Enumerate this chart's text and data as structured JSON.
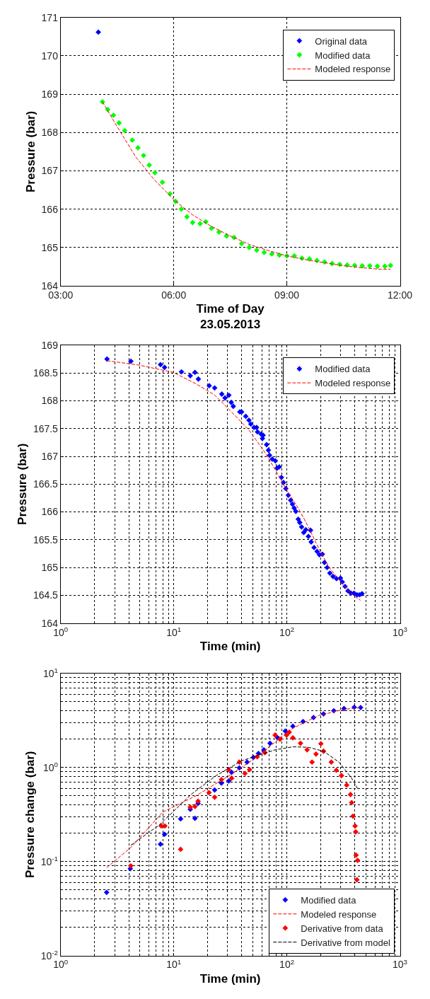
{
  "chart_data": [
    {
      "type": "scatter",
      "xlabel": "Time of Day\n23.05.2013",
      "ylabel": "Pressure (bar)",
      "xlim": [
        3,
        12
      ],
      "xticks": [
        {
          "value": 3,
          "label": "03:00"
        },
        {
          "value": 6,
          "label": "06:00"
        },
        {
          "value": 9,
          "label": "09:00"
        },
        {
          "value": 12,
          "label": "12:00"
        }
      ],
      "ylim": [
        164,
        171
      ],
      "yticks": [
        164,
        165,
        166,
        167,
        168,
        169,
        170,
        171
      ],
      "grid": true,
      "legend": "top right",
      "series": [
        {
          "name": "Original data",
          "marker": "diamond",
          "color": "#0000ff",
          "x": [
            4.0
          ],
          "values": [
            170.62
          ]
        },
        {
          "name": "Modified data",
          "marker": "diamond",
          "color": "#00ff00",
          "x": [
            4.11,
            4.25,
            4.4,
            4.55,
            4.7,
            4.9,
            5.05,
            5.2,
            5.35,
            5.5,
            5.7,
            5.9,
            6.05,
            6.2,
            6.35,
            6.5,
            6.7,
            6.85,
            7.0,
            7.2,
            7.4,
            7.6,
            7.8,
            8.0,
            8.2,
            8.4,
            8.6,
            8.8,
            9.0,
            9.2,
            9.4,
            9.6,
            9.8,
            10.0,
            10.2,
            10.4,
            10.6,
            10.8,
            11.0,
            11.2,
            11.4,
            11.6,
            11.75
          ],
          "values": [
            168.8,
            168.6,
            168.45,
            168.25,
            168.05,
            167.8,
            167.6,
            167.4,
            167.15,
            166.95,
            166.7,
            166.4,
            166.2,
            166.0,
            165.8,
            165.65,
            165.62,
            165.67,
            165.5,
            165.4,
            165.3,
            165.26,
            165.1,
            165.0,
            164.93,
            164.87,
            164.83,
            164.8,
            164.78,
            164.78,
            164.72,
            164.7,
            164.66,
            164.62,
            164.58,
            164.56,
            164.54,
            164.53,
            164.52,
            164.52,
            164.51,
            164.51,
            164.53
          ]
        },
        {
          "name": "Modeled response",
          "type": "line",
          "line_style": "dashed",
          "color": "#ff0000",
          "x": [
            4.11,
            4.5,
            5.0,
            5.5,
            6.0,
            6.5,
            7.0,
            7.5,
            8.0,
            8.5,
            9.0,
            9.5,
            10.0,
            10.5,
            11.0,
            11.5,
            11.75
          ],
          "values": [
            168.8,
            168.15,
            167.35,
            166.75,
            166.25,
            165.85,
            165.55,
            165.3,
            165.08,
            164.92,
            164.78,
            164.68,
            164.6,
            164.52,
            164.47,
            164.43,
            164.43
          ]
        }
      ]
    },
    {
      "type": "scatter",
      "xlabel": "Time (min)",
      "ylabel": "Pressure (bar)",
      "log": "x",
      "xlim": [
        1,
        1000
      ],
      "xticks": [
        {
          "value": 1,
          "label": "10$^{0}$"
        },
        {
          "value": 10,
          "label": "10$^{1}$"
        },
        {
          "value": 100,
          "label": "10$^{2}$"
        },
        {
          "value": 1000,
          "label": "10$^{3}$"
        }
      ],
      "ylim": [
        164,
        169
      ],
      "yticks": [
        164,
        164.5,
        165,
        165.5,
        166,
        166.5,
        167,
        167.5,
        168,
        168.5,
        169
      ],
      "grid": true,
      "legend": "top right",
      "series": [
        {
          "name": "Modified data",
          "marker": "diamond",
          "color": "#0000ff",
          "x": [
            2.57,
            4.18,
            7.63,
            8.3,
            11.7,
            14.0,
            15.4,
            16.5,
            20.6,
            23.0,
            26.6,
            28.4,
            30.7,
            32.2,
            33.6,
            38.4,
            39.8,
            43.3,
            46.2,
            48.0,
            51.3,
            54.0,
            55.0,
            59.2,
            60.8,
            61.7,
            66.2,
            68.7,
            70.3,
            74.3,
            79.2,
            82.2,
            85.8,
            89.5,
            93.4,
            97.9,
            103,
            108,
            112,
            116,
            120,
            126,
            130,
            135,
            141,
            147,
            155,
            162,
            164,
            174,
            185,
            194,
            206,
            215,
            227,
            240,
            256,
            275,
            298,
            309,
            327,
            347,
            368,
            392,
            418,
            440,
            462
          ],
          "values": [
            168.75,
            168.71,
            168.65,
            168.6,
            168.52,
            168.45,
            168.51,
            168.39,
            168.27,
            168.23,
            168.12,
            168.05,
            168.1,
            167.97,
            167.9,
            167.8,
            167.8,
            167.72,
            167.65,
            167.58,
            167.52,
            167.52,
            167.44,
            167.4,
            167.32,
            167.38,
            167.21,
            167.11,
            167.02,
            166.95,
            166.92,
            166.79,
            166.81,
            166.62,
            166.53,
            166.42,
            166.3,
            166.21,
            166.14,
            166.07,
            166.01,
            165.87,
            165.81,
            165.73,
            165.63,
            165.68,
            165.56,
            165.67,
            165.46,
            165.36,
            165.29,
            165.23,
            165.24,
            165.09,
            165.0,
            164.9,
            164.84,
            164.8,
            164.81,
            164.74,
            164.66,
            164.58,
            164.54,
            164.54,
            164.51,
            164.51,
            164.53
          ]
        },
        {
          "name": "Modeled response",
          "type": "line",
          "line_style": "dashed",
          "color": "#ff0000",
          "x": [
            2.57,
            4.97,
            9.9,
            15.9,
            23.1,
            31.7,
            45.9,
            63.1,
            82.2,
            102,
            126,
            155,
            192,
            237,
            309,
            382,
            448
          ],
          "values": [
            168.72,
            168.64,
            168.51,
            168.3,
            168.1,
            167.82,
            167.48,
            167.09,
            166.7,
            166.36,
            166.07,
            165.73,
            165.34,
            165.0,
            164.71,
            164.51,
            164.41
          ]
        }
      ]
    },
    {
      "type": "scatter",
      "xlabel": "Time (min)",
      "ylabel": "Pressure change (bar)",
      "log": "xy",
      "xlim": [
        1,
        1000
      ],
      "xticks": [
        {
          "value": 1,
          "label": "10$^{0}$"
        },
        {
          "value": 10,
          "label": "10$^{1}$"
        },
        {
          "value": 100,
          "label": "10$^{2}$"
        },
        {
          "value": 1000,
          "label": "10$^{3}$"
        }
      ],
      "ylim": [
        0.01,
        10
      ],
      "yticks": [
        {
          "value": 0.01,
          "label": "10$^{-2}$"
        },
        {
          "value": 0.1,
          "label": "10$^{-1}$"
        },
        {
          "value": 1,
          "label": "10$^{0}$"
        },
        {
          "value": 10,
          "label": "10$^{1}$"
        }
      ],
      "grid": true,
      "legend": "bottom right",
      "series": [
        {
          "name": "Modified data",
          "marker": "diamond",
          "color": "#0000ff",
          "x": [
            2.55,
            4.13,
            7.63,
            8.3,
            11.5,
            14.0,
            15.4,
            16.4,
            20.5,
            23.0,
            26.4,
            30.6,
            32.5,
            38,
            44.5,
            50.6,
            56.1,
            62.6,
            71,
            83,
            96.9,
            113,
            139,
            172,
            211,
            260,
            320,
            394,
            449
          ],
          "values": [
            0.047,
            0.084,
            0.153,
            0.195,
            0.284,
            0.359,
            0.288,
            0.415,
            null,
            0.577,
            0.681,
            0.719,
            0.887,
            0.99,
            1.14,
            1.28,
            1.41,
            1.54,
            1.81,
            2.07,
            2.44,
            2.75,
            3.08,
            3.4,
            3.71,
            4.01,
            4.23,
            4.37,
            4.34
          ]
        },
        {
          "name": "Modeled response",
          "type": "line",
          "line_style": "dashed",
          "color": "#ff0000",
          "x": [
            2.55,
            4.17,
            8.0,
            15.7,
            30.9,
            54.7,
            87.4,
            113,
            190,
            320,
            449
          ],
          "values": [
            0.086,
            0.141,
            0.336,
            0.5,
            0.82,
            1.3,
            2.07,
            2.61,
            3.56,
            4.15,
            4.34
          ]
        },
        {
          "name": "Derivative from data",
          "marker": "diamond",
          "color": "#ff0000",
          "x": [
            4.17,
            7.75,
            8.35,
            11.5,
            14,
            15.4,
            16.4,
            20.5,
            23,
            26.4,
            30.6,
            32.5,
            38,
            42.6,
            46.8,
            54.7,
            64,
            78.7,
            87,
            99.5,
            105,
            113,
            132,
            151,
            167,
            181,
            200,
            211,
            247,
            274,
            304,
            338,
            365,
            374,
            384,
            394,
            401,
            406,
            409,
            422,
            416
          ],
          "values": [
            0.09,
            0.239,
            0.239,
            0.135,
            0.378,
            0.385,
            0.438,
            0.54,
            0.483,
            0.743,
            0.948,
            0.77,
            1.14,
            0.865,
            0.948,
            1.3,
            1.44,
            2.21,
            2.0,
            2.21,
            2.37,
            2.07,
            1.81,
            1.54,
            1.14,
            1.39,
            1.79,
            1.49,
            1.14,
            0.935,
            0.82,
            0.65,
            0.516,
            0.423,
            0.304,
            null,
            0.239,
            0.207,
            0.117,
            0.103,
            0.064
          ]
        },
        {
          "name": "Derivative from model",
          "type": "line",
          "line_style": "dashed",
          "color": "#000000",
          "x": [
            4.17,
            7.4,
            14.2,
            23.7,
            40,
            78.7,
            113,
            155,
            211,
            289,
            374,
            431
          ],
          "values": [
            0.149,
            0.243,
            0.516,
            0.82,
            1.18,
            1.54,
            1.66,
            1.64,
            1.49,
            1.14,
            0.77,
            0.57
          ]
        }
      ]
    }
  ]
}
